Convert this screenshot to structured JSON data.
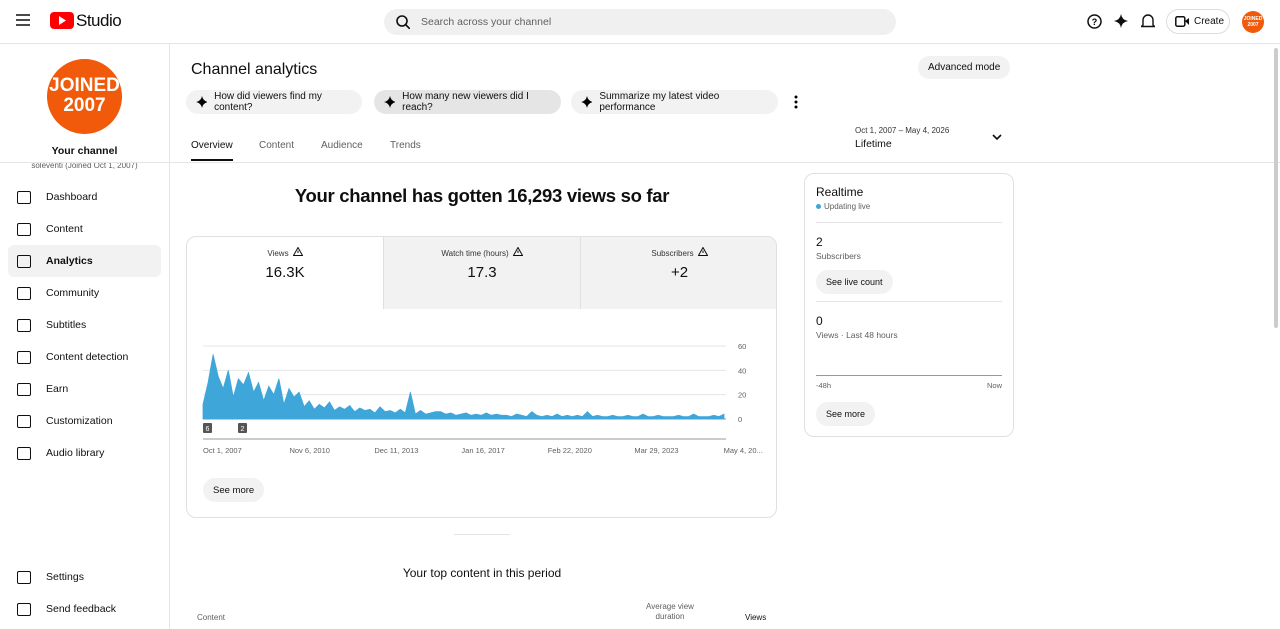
{
  "header": {
    "logo": "Studio",
    "search_placeholder": "Search across your channel",
    "create": "Create",
    "avatar_text": "JOINED 2007"
  },
  "sidebar": {
    "avatar_line1": "JOINED",
    "avatar_line2": "2007",
    "channel_title": "Your channel",
    "channel_sub": "soleventi (Joined Oct 1, 2007)",
    "nav": [
      "Dashboard",
      "Content",
      "Analytics",
      "Community",
      "Subtitles",
      "Content detection",
      "Earn",
      "Customization",
      "Audio library"
    ],
    "footer_nav": [
      "Settings",
      "Send feedback"
    ]
  },
  "page": {
    "title": "Channel analytics",
    "advanced": "Advanced mode",
    "prompts": [
      "How did viewers find my content?",
      "How many new viewers did I reach?",
      "Summarize my latest video performance"
    ],
    "tabs": [
      "Overview",
      "Content",
      "Audience",
      "Trends"
    ],
    "date_range": "Oct 1, 2007 – May 4, 2026",
    "period": "Lifetime"
  },
  "overview": {
    "headline": "Your channel has gotten 16,293 views so far",
    "metrics": [
      {
        "label": "Views",
        "value": "16.3K"
      },
      {
        "label": "Watch time (hours)",
        "value": "17.3"
      },
      {
        "label": "Subscribers",
        "value": "+2"
      }
    ],
    "chart": {
      "type": "area",
      "color": "#3ea6d9",
      "ylim": [
        0,
        60
      ],
      "yticks": [
        0,
        20,
        40,
        60
      ],
      "x_labels": [
        "Oct 1, 2007",
        "Nov 6, 2010",
        "Dec 11, 2013",
        "Jan 16, 2017",
        "Feb 22, 2020",
        "Mar 29, 2023",
        "May 4, 20..."
      ],
      "markers": [
        "6",
        "2"
      ],
      "values": [
        12,
        30,
        53,
        35,
        25,
        40,
        18,
        33,
        28,
        38,
        22,
        30,
        15,
        27,
        20,
        33,
        12,
        25,
        18,
        22,
        10,
        15,
        8,
        12,
        9,
        14,
        7,
        10,
        8,
        11,
        6,
        9,
        7,
        8,
        5,
        10,
        6,
        7,
        5,
        8,
        5,
        22,
        4,
        7,
        4,
        5,
        6,
        6,
        4,
        5,
        3,
        4,
        5,
        3,
        4,
        3,
        5,
        3,
        4,
        3,
        3,
        2,
        4,
        3,
        2,
        6,
        3,
        2,
        3,
        2,
        4,
        2,
        3,
        2,
        3,
        2,
        6,
        2,
        3,
        2,
        2,
        3,
        2,
        2,
        3,
        2,
        2,
        4,
        2,
        2,
        3,
        2,
        2,
        2,
        3,
        2,
        2,
        4,
        2,
        2,
        2,
        3,
        2,
        4
      ]
    },
    "see_more": "See more"
  },
  "realtime": {
    "title": "Realtime",
    "status": "Updating live",
    "subs_value": "2",
    "subs_label": "Subscribers",
    "live_count": "See live count",
    "views_value": "0",
    "views_label": "Views · Last 48 hours",
    "axis_start": "-48h",
    "axis_end": "Now",
    "see_more": "See more"
  },
  "top_content": {
    "title": "Your top content in this period",
    "col_content": "Content",
    "col_duration": "Average view duration",
    "col_views": "Views"
  }
}
